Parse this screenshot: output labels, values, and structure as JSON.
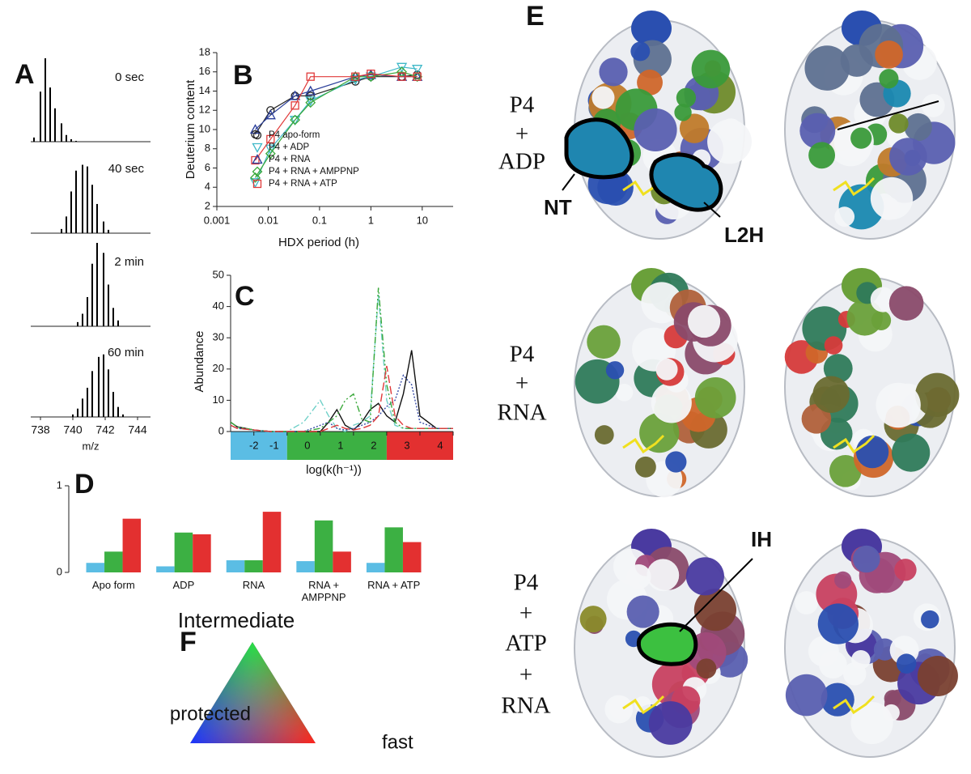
{
  "chart_data": [
    {
      "type": "stem",
      "panel": "A",
      "title": "0 sec",
      "color": "#000000",
      "xlim": [
        737.4,
        744.8
      ],
      "ylim": [
        0,
        100
      ],
      "x": [
        737.6,
        738.0,
        738.3,
        738.6,
        738.9,
        739.3,
        739.6,
        739.9,
        740.2
      ],
      "values": [
        5,
        60,
        100,
        65,
        40,
        22,
        8,
        3,
        1
      ]
    },
    {
      "type": "stem",
      "title": "40 sec",
      "color": "#000000",
      "xlim": [
        737.4,
        744.8
      ],
      "ylim": [
        0,
        100
      ],
      "x": [
        739.3,
        739.6,
        739.9,
        740.2,
        740.6,
        740.9,
        741.2,
        741.5,
        741.9,
        742.2
      ],
      "values": [
        5,
        20,
        50,
        75,
        82,
        80,
        58,
        35,
        14,
        4
      ]
    },
    {
      "type": "stem",
      "title": "2 min",
      "color": "#000000",
      "xlim": [
        737.4,
        744.8
      ],
      "ylim": [
        0,
        100
      ],
      "x": [
        740.3,
        740.6,
        740.9,
        741.2,
        741.5,
        741.9,
        742.2,
        742.5,
        742.8
      ],
      "values": [
        5,
        15,
        35,
        75,
        100,
        88,
        50,
        22,
        7
      ]
    },
    {
      "type": "stem",
      "title": "60 min",
      "color": "#000000",
      "xlim": [
        737.4,
        744.8
      ],
      "ylim": [
        0,
        100
      ],
      "xticks": [
        738,
        740,
        742,
        744
      ],
      "xlabel": "m/z",
      "x": [
        740.0,
        740.3,
        740.6,
        740.9,
        741.2,
        741.6,
        741.9,
        742.2,
        742.5,
        742.8,
        743.1
      ],
      "values": [
        3,
        10,
        22,
        35,
        55,
        72,
        75,
        57,
        30,
        12,
        3
      ]
    },
    {
      "type": "scatter",
      "panel": "B",
      "xlabel": "HDX period (h)",
      "ylabel": "Deuterium content",
      "log_x": true,
      "legend": "lower center",
      "xlim": [
        0.001,
        40
      ],
      "xticks": [
        0.001,
        0.01,
        0.1,
        1,
        10
      ],
      "ylim": [
        2,
        18
      ],
      "yticks": [
        2,
        4,
        6,
        8,
        10,
        12,
        14,
        16,
        18
      ],
      "x": [
        0.0056,
        0.0111,
        0.0333,
        0.0667,
        0.5,
        1,
        4,
        8
      ],
      "series": [
        {
          "name": "P4 apo-form",
          "color": "#222222",
          "marker": "circle",
          "values": [
            9.5,
            12,
            13.5,
            13.5,
            15,
            15.5,
            15.5,
            15.7
          ]
        },
        {
          "name": "P4 + ADP",
          "color": "#3fb8c8",
          "marker": "triangle-down",
          "values": [
            4.5,
            8,
            11,
            13,
            15.2,
            15.5,
            16.5,
            16.3
          ]
        },
        {
          "name": "P4 + RNA",
          "color": "#2a3e9a",
          "marker": "triangle-up",
          "values": [
            10,
            11.5,
            13.5,
            14,
            15.5,
            15.7,
            15.5,
            15.5
          ]
        },
        {
          "name": "P4 + RNA + AMPPNP",
          "color": "#3aa83a",
          "marker": "diamond",
          "values": [
            5,
            7.5,
            11,
            12.8,
            15.5,
            15.5,
            16,
            15.5
          ]
        },
        {
          "name": "P4 + RNA + ATP",
          "color": "#e03a3a",
          "marker": "square",
          "values": [
            6.8,
            9,
            12.5,
            15.5,
            15.5,
            15.8,
            15.5,
            15.5
          ]
        }
      ]
    },
    {
      "type": "line",
      "panel": "C",
      "xlabel": "log(k(h⁻¹))",
      "ylabel": "Abundance",
      "xlim": [
        -2.7,
        4
      ],
      "xticks": [
        -2,
        -1,
        0,
        1,
        2,
        3,
        4
      ],
      "ylim": [
        0,
        50
      ],
      "yticks": [
        0,
        10,
        20,
        30,
        40,
        50
      ],
      "regions": [
        {
          "from": -2.7,
          "to": -1,
          "color": "#5bbde4"
        },
        {
          "from": -1,
          "to": 2,
          "color": "#3cb043"
        },
        {
          "from": 2,
          "to": 4,
          "color": "#e33030"
        }
      ],
      "x": [
        -2.7,
        -2.5,
        -2,
        -1.5,
        -1,
        -0.5,
        0,
        0.25,
        0.5,
        0.75,
        1,
        1.25,
        1.5,
        1.75,
        2,
        2.25,
        2.5,
        2.75,
        3,
        3.5,
        4
      ],
      "series": [
        {
          "color": "#111111",
          "dash": "none",
          "values": [
            3,
            1.5,
            0.5,
            0,
            0,
            0,
            0,
            3,
            7,
            2,
            0.5,
            3,
            7,
            9,
            5,
            3,
            12,
            26,
            5,
            1,
            1
          ]
        },
        {
          "color": "#6fd0c8",
          "dash": "8 3 2 3",
          "values": [
            2,
            1,
            0.5,
            0,
            0,
            3,
            10,
            5,
            1,
            0,
            2,
            3,
            5,
            44,
            10,
            2,
            1,
            1,
            1,
            1,
            1
          ]
        },
        {
          "color": "#3a4ea8",
          "dash": "2 2",
          "values": [
            2,
            1,
            0.5,
            0,
            0,
            0,
            2,
            3,
            1,
            0.5,
            1,
            2,
            3,
            5,
            8,
            10,
            18,
            15,
            3,
            1,
            1
          ]
        },
        {
          "color": "#3aa83a",
          "dash": "8 3 2 3 2 3",
          "values": [
            3,
            1.5,
            0.5,
            0,
            0,
            0,
            1,
            3,
            5,
            10,
            12,
            4,
            3,
            46,
            15,
            3,
            1,
            1,
            1,
            1,
            1
          ]
        },
        {
          "color": "#e03a3a",
          "dash": "10 4",
          "values": [
            2,
            1,
            0.5,
            0,
            0,
            0,
            0,
            1,
            2,
            1,
            0.5,
            1,
            2,
            5,
            21,
            5,
            2,
            1,
            1,
            1,
            1
          ]
        }
      ]
    },
    {
      "type": "bar",
      "panel": "D",
      "ylim": [
        0,
        1
      ],
      "yticks": [
        0,
        1
      ],
      "categories": [
        "Apo form",
        "ADP",
        "RNA",
        "RNA + AMPPNP",
        "RNA + ATP"
      ],
      "series": [
        {
          "color": "#5bbde4",
          "values": [
            0.11,
            0.07,
            0.14,
            0.13,
            0.11
          ]
        },
        {
          "color": "#3cb043",
          "values": [
            0.24,
            0.46,
            0.14,
            0.6,
            0.52
          ]
        },
        {
          "color": "#e33030",
          "values": [
            0.62,
            0.44,
            0.7,
            0.24,
            0.35
          ]
        }
      ]
    }
  ],
  "panel_e": {
    "letter": "E",
    "rows": [
      [
        "P4",
        "+",
        "ADP"
      ],
      [
        "P4",
        "+",
        "RNA"
      ],
      [
        "P4",
        "+",
        "ATP",
        "+",
        "RNA"
      ]
    ],
    "callouts": {
      "nt": "NT",
      "l2h": "L2H",
      "ih": "IH"
    }
  },
  "panel_f": {
    "letter": "F",
    "top": "Intermediate",
    "left": "protected",
    "right": "fast"
  }
}
